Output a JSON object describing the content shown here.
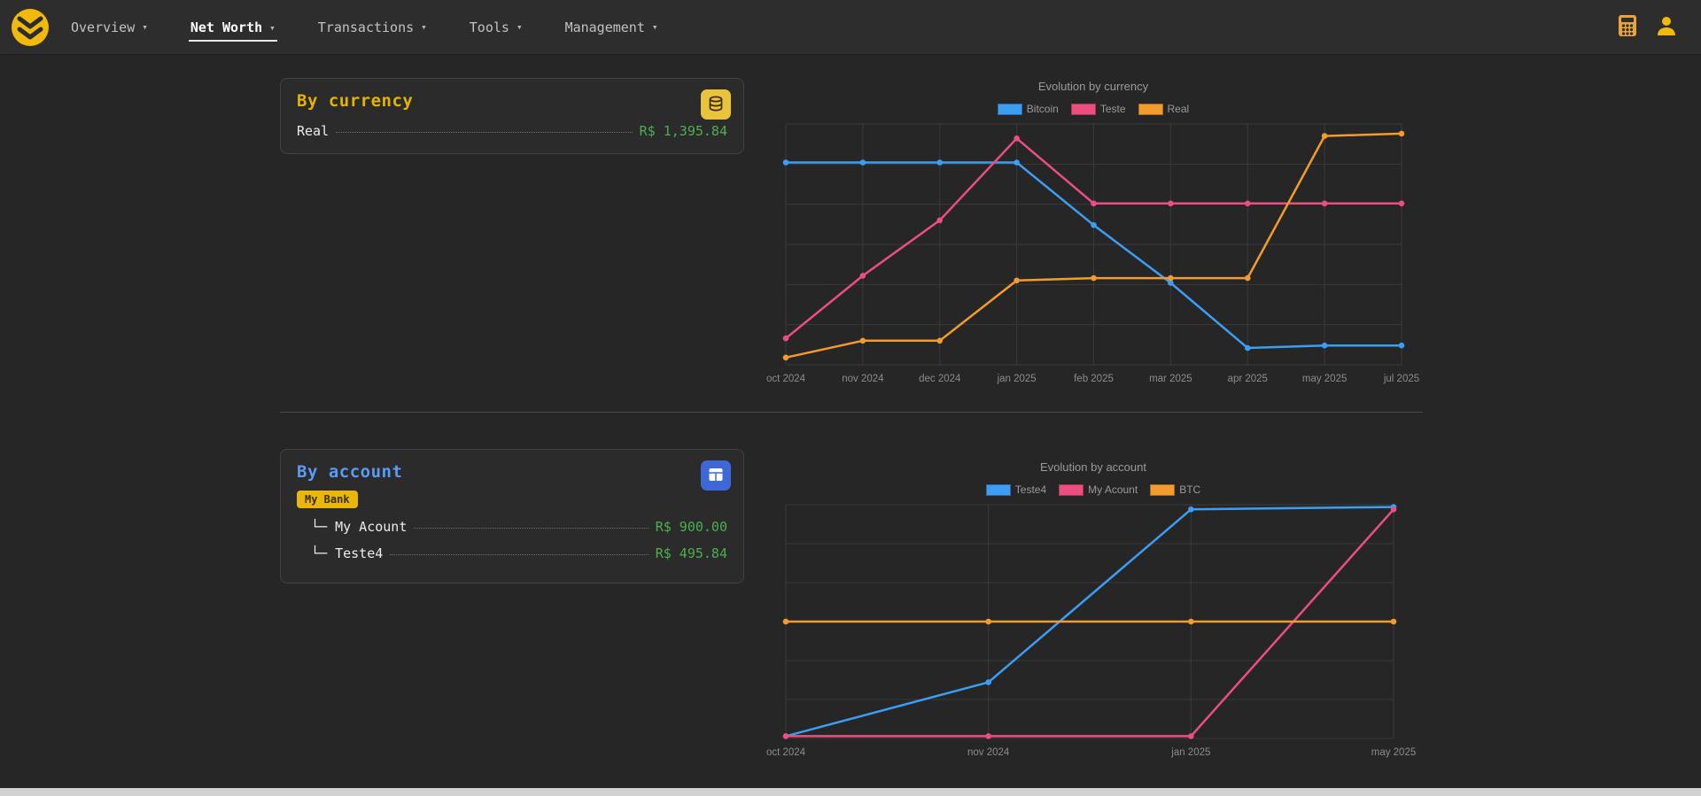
{
  "navbar": {
    "caret": "▾",
    "items": [
      {
        "label": "Overview"
      },
      {
        "label": "Net Worth"
      },
      {
        "label": "Transactions"
      },
      {
        "label": "Tools"
      },
      {
        "label": "Management"
      }
    ],
    "active": "Net Worth"
  },
  "cards": {
    "currency": {
      "title": "By currency",
      "rows": [
        {
          "label": "Real",
          "value": "R$ 1,395.84"
        }
      ]
    },
    "account": {
      "title": "By account",
      "group": "My Bank",
      "rows": [
        {
          "label": "└─ My Acount",
          "value": "R$ 900.00"
        },
        {
          "label": "└─ Teste4",
          "value": "R$ 495.84"
        }
      ]
    }
  },
  "chart_data": [
    {
      "type": "line",
      "title": "Evolution by currency",
      "categories": [
        "oct 2024",
        "nov 2024",
        "dec 2024",
        "jan 2025",
        "feb 2025",
        "mar 2025",
        "apr 2025",
        "may 2025",
        "jul 2025"
      ],
      "series": [
        {
          "name": "Bitcoin",
          "color": "#3d9df3",
          "values": [
            84,
            84,
            84,
            84,
            58,
            34,
            7,
            8,
            8
          ]
        },
        {
          "name": "Teste",
          "color": "#ec4f7f",
          "values": [
            11,
            37,
            60,
            94,
            67,
            67,
            67,
            67,
            67
          ]
        },
        {
          "name": "Real",
          "color": "#f39b2d",
          "values": [
            3,
            10,
            10,
            35,
            36,
            36,
            36,
            95,
            96
          ]
        }
      ],
      "xlabel": "",
      "ylabel": "",
      "ylim": [
        0,
        100
      ],
      "y_axis_tick_labels_visible": false,
      "values_note": "relative scale 0-100 estimated from pixel positions; no y-axis tick labels shown in chart",
      "legend_position": "top",
      "grid": true
    },
    {
      "type": "line",
      "title": "Evolution by account",
      "categories": [
        "oct 2024",
        "nov 2024",
        "jan 2025",
        "may 2025"
      ],
      "series": [
        {
          "name": "Teste4",
          "color": "#3d9df3",
          "values": [
            1,
            24,
            98,
            99
          ]
        },
        {
          "name": "My Acount",
          "color": "#ec4f7f",
          "values": [
            1,
            1,
            1,
            98
          ]
        },
        {
          "name": "BTC",
          "color": "#f39b2d",
          "values": [
            50,
            50,
            50,
            50
          ]
        }
      ],
      "xlabel": "",
      "ylabel": "",
      "ylim": [
        0,
        100
      ],
      "y_axis_tick_labels_visible": false,
      "values_note": "relative scale 0-100 estimated from pixel positions; no y-axis tick labels shown in chart",
      "legend_position": "top",
      "grid": true
    }
  ],
  "colors": {
    "accent_yellow": "#f0b90b",
    "accent_blue_title": "#5b9bf6",
    "button_blue": "#3e68d8",
    "positive_green": "#4caf50",
    "chart_blue": "#3d9df3",
    "chart_pink": "#ec4f7f",
    "chart_orange": "#f39b2d",
    "background": "#262626",
    "card_background": "#2b2b2b"
  }
}
